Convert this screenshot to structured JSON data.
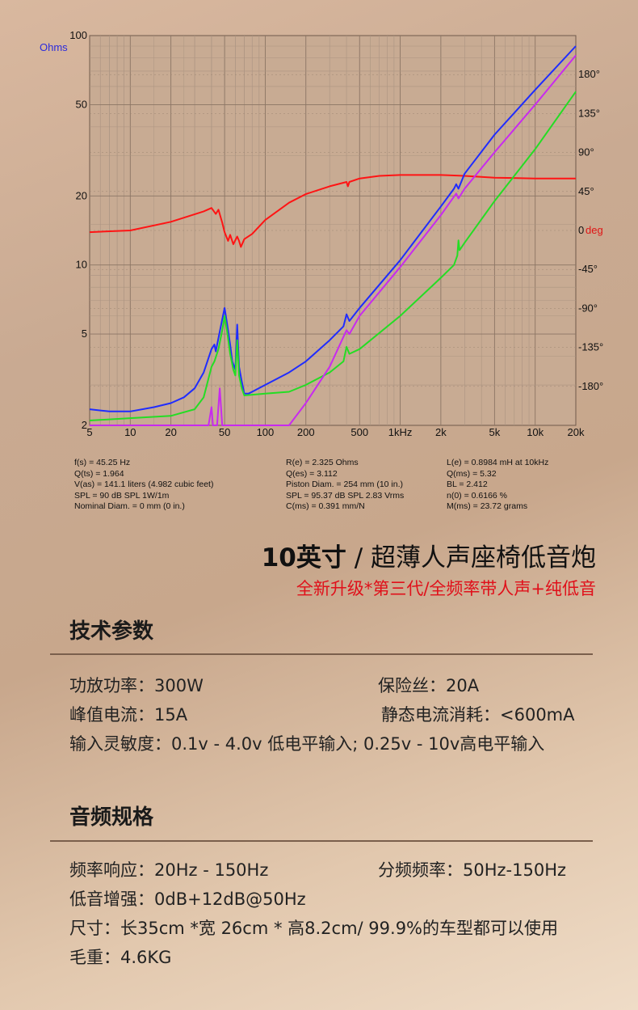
{
  "chart_data": {
    "type": "line",
    "x_scale": "log",
    "x_range": [
      5,
      20000
    ],
    "x_ticks": [
      "5",
      "10",
      "20",
      "50",
      "100",
      "200",
      "500",
      "1kHz",
      "2k",
      "5k",
      "10k",
      "20k"
    ],
    "y_left_unit": "Ohms",
    "y_left_scale": "log",
    "y_left_range": [
      2,
      100
    ],
    "y_left_ticks": [
      "100",
      "50",
      "20",
      "10",
      "5",
      "2"
    ],
    "y_right_unit": "deg",
    "y_right_range": [
      -225,
      225
    ],
    "y_right_ticks": [
      "180°",
      "135°",
      "90°",
      "45°",
      "0",
      "-45°",
      "-90°",
      "-135°",
      "-180°"
    ],
    "grid": true,
    "series": [
      {
        "color": "#ff1414",
        "axis": "right",
        "points": [
          [
            5,
            -2
          ],
          [
            10,
            0
          ],
          [
            20,
            10
          ],
          [
            35,
            22
          ],
          [
            40,
            26
          ],
          [
            43,
            19
          ],
          [
            45,
            24
          ],
          [
            48,
            9
          ],
          [
            50,
            -2
          ],
          [
            53,
            -12
          ],
          [
            55,
            -5
          ],
          [
            58,
            -16
          ],
          [
            62,
            -7
          ],
          [
            64,
            -12
          ],
          [
            66,
            -19
          ],
          [
            70,
            -10
          ],
          [
            80,
            -4
          ],
          [
            100,
            12
          ],
          [
            150,
            32
          ],
          [
            200,
            42
          ],
          [
            300,
            51
          ],
          [
            400,
            56
          ],
          [
            410,
            51
          ],
          [
            420,
            56
          ],
          [
            500,
            60
          ],
          [
            700,
            63
          ],
          [
            1000,
            64
          ],
          [
            2000,
            64
          ],
          [
            3000,
            63
          ],
          [
            5000,
            61
          ],
          [
            10000,
            60
          ],
          [
            20000,
            60
          ]
        ]
      },
      {
        "color": "#1f2cff",
        "points": [
          [
            5,
            2.35
          ],
          [
            7,
            2.3
          ],
          [
            10,
            2.3
          ],
          [
            15,
            2.4
          ],
          [
            20,
            2.5
          ],
          [
            25,
            2.65
          ],
          [
            30,
            2.9
          ],
          [
            35,
            3.4
          ],
          [
            40,
            4.3
          ],
          [
            42,
            4.5
          ],
          [
            43,
            4.2
          ],
          [
            45,
            4.8
          ],
          [
            48,
            5.8
          ],
          [
            50,
            6.5
          ],
          [
            52,
            5.6
          ],
          [
            55,
            4.5
          ],
          [
            57,
            3.8
          ],
          [
            60,
            3.5
          ],
          [
            62,
            5.5
          ],
          [
            64,
            3.6
          ],
          [
            67,
            3.1
          ],
          [
            70,
            2.75
          ],
          [
            75,
            2.75
          ],
          [
            80,
            2.8
          ],
          [
            100,
            3.0
          ],
          [
            150,
            3.4
          ],
          [
            200,
            3.8
          ],
          [
            300,
            4.7
          ],
          [
            380,
            5.4
          ],
          [
            400,
            6.1
          ],
          [
            420,
            5.7
          ],
          [
            500,
            6.5
          ],
          [
            1000,
            10.5
          ],
          [
            2000,
            18
          ],
          [
            2500,
            21.5
          ],
          [
            2600,
            22.5
          ],
          [
            2700,
            21.5
          ],
          [
            3000,
            25
          ],
          [
            5000,
            37
          ],
          [
            10000,
            58
          ],
          [
            20000,
            90
          ]
        ]
      },
      {
        "color": "#24dd24",
        "points": [
          [
            5,
            2.1
          ],
          [
            10,
            2.15
          ],
          [
            20,
            2.2
          ],
          [
            30,
            2.35
          ],
          [
            35,
            2.65
          ],
          [
            40,
            3.6
          ],
          [
            42,
            3.8
          ],
          [
            45,
            4.3
          ],
          [
            48,
            5.2
          ],
          [
            50,
            6.0
          ],
          [
            52,
            5.2
          ],
          [
            55,
            4.1
          ],
          [
            58,
            3.5
          ],
          [
            60,
            3.3
          ],
          [
            62,
            4.7
          ],
          [
            64,
            3.3
          ],
          [
            67,
            2.9
          ],
          [
            70,
            2.7
          ],
          [
            100,
            2.75
          ],
          [
            150,
            2.8
          ],
          [
            200,
            3.0
          ],
          [
            300,
            3.4
          ],
          [
            380,
            3.8
          ],
          [
            400,
            4.4
          ],
          [
            420,
            4.1
          ],
          [
            500,
            4.3
          ],
          [
            1000,
            6.0
          ],
          [
            2000,
            8.8
          ],
          [
            2500,
            10
          ],
          [
            2650,
            11
          ],
          [
            2700,
            12.8
          ],
          [
            2750,
            11.6
          ],
          [
            3000,
            12.5
          ],
          [
            5000,
            19
          ],
          [
            10000,
            32
          ],
          [
            20000,
            57
          ]
        ]
      },
      {
        "color": "#c82aef",
        "points": [
          [
            5,
            1.95
          ],
          [
            38,
            1.95
          ],
          [
            40,
            2.4
          ],
          [
            41,
            1.95
          ],
          [
            44,
            1.95
          ],
          [
            46,
            2.9
          ],
          [
            48,
            1.95
          ],
          [
            150,
            1.95
          ],
          [
            200,
            2.5
          ],
          [
            300,
            3.6
          ],
          [
            400,
            5.2
          ],
          [
            420,
            5.0
          ],
          [
            500,
            6.0
          ],
          [
            1000,
            9.8
          ],
          [
            2000,
            16.5
          ],
          [
            2600,
            20.5
          ],
          [
            2700,
            19.5
          ],
          [
            3000,
            21.5
          ],
          [
            5000,
            31
          ],
          [
            10000,
            50
          ],
          [
            20000,
            82
          ]
        ]
      }
    ]
  },
  "params": {
    "col1": [
      "f(s) = 45.25 Hz",
      "Q(ts) = 1.964",
      "V(as) = 141.1 liters  (4.982 cubic feet)",
      "SPL = 90 dB SPL 1W/1m",
      "Nominal Diam. = 0 mm (0 in.)"
    ],
    "col2": [
      "R(e) = 2.325 Ohms",
      "Q(es) = 3.112",
      "Piston Diam. = 254 mm (10 in.)",
      "SPL = 95.37 dB SPL 2.83 Vrms",
      "C(ms) = 0.391 mm/N"
    ],
    "col3": [
      "L(e) = 0.8984 mH at 10kHz",
      "Q(ms) = 5.32",
      "BL = 2.412",
      "n(0) = 0.6166 %",
      "M(ms) = 23.72 grams"
    ]
  },
  "product": {
    "title_bold": "10英寸",
    "title_rest": " / 超薄人声座椅低音炮",
    "subtitle": "全新升级*第三代/全频率带人声+纯低音"
  },
  "tech": {
    "heading": "技术参数",
    "amp_power": "功放功率：300W",
    "fuse": "保险丝：20A",
    "peak_current": "峰值电流：15A",
    "static_current": "静态电流消耗：<600mA",
    "input_sensitivity": "输入灵敏度：0.1v - 4.0v 低电平输入; 0.25v - 10v高电平输入"
  },
  "audio": {
    "heading": "音频规格",
    "freq_response": "频率响应：20Hz - 150Hz",
    "crossover": "分频频率：50Hz-150Hz",
    "bass_boost": "低音增强：0dB+12dB@50Hz",
    "size": "尺寸：长35cm *宽 26cm * 高8.2cm/  99.9%的车型都可以使用",
    "weight": "毛重：4.6KG"
  }
}
